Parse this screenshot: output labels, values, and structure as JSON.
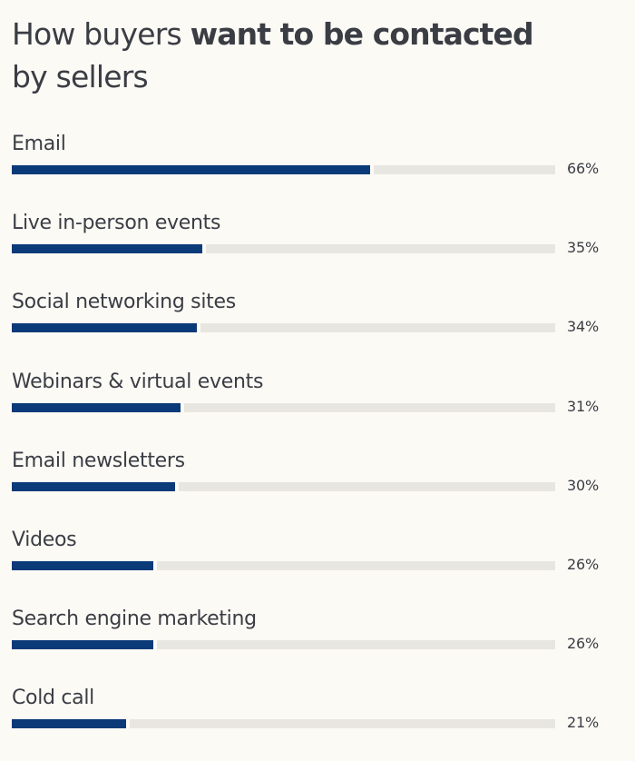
{
  "chart_data": {
    "type": "bar",
    "orientation": "horizontal",
    "title_regular": "How buyers",
    "title_bold": "want to be contacted",
    "title_line2": "by sellers",
    "categories": [
      "Email",
      "Live in-person events",
      "Social networking sites",
      "Webinars & virtual events",
      "Email newsletters",
      "Videos",
      "Search engine marketing",
      "Cold call"
    ],
    "values": [
      66,
      35,
      34,
      31,
      30,
      26,
      26,
      21
    ],
    "value_labels": [
      "66%",
      "35%",
      "34%",
      "31%",
      "30%",
      "26%",
      "26%",
      "21%"
    ],
    "xlim": [
      0,
      100
    ],
    "unit": "%",
    "grid": false,
    "legend": false,
    "colors": {
      "bar": "#0b3a78",
      "track": "#e8e6e0",
      "background": "#fcfaf5",
      "text": "#3a3d44"
    }
  }
}
